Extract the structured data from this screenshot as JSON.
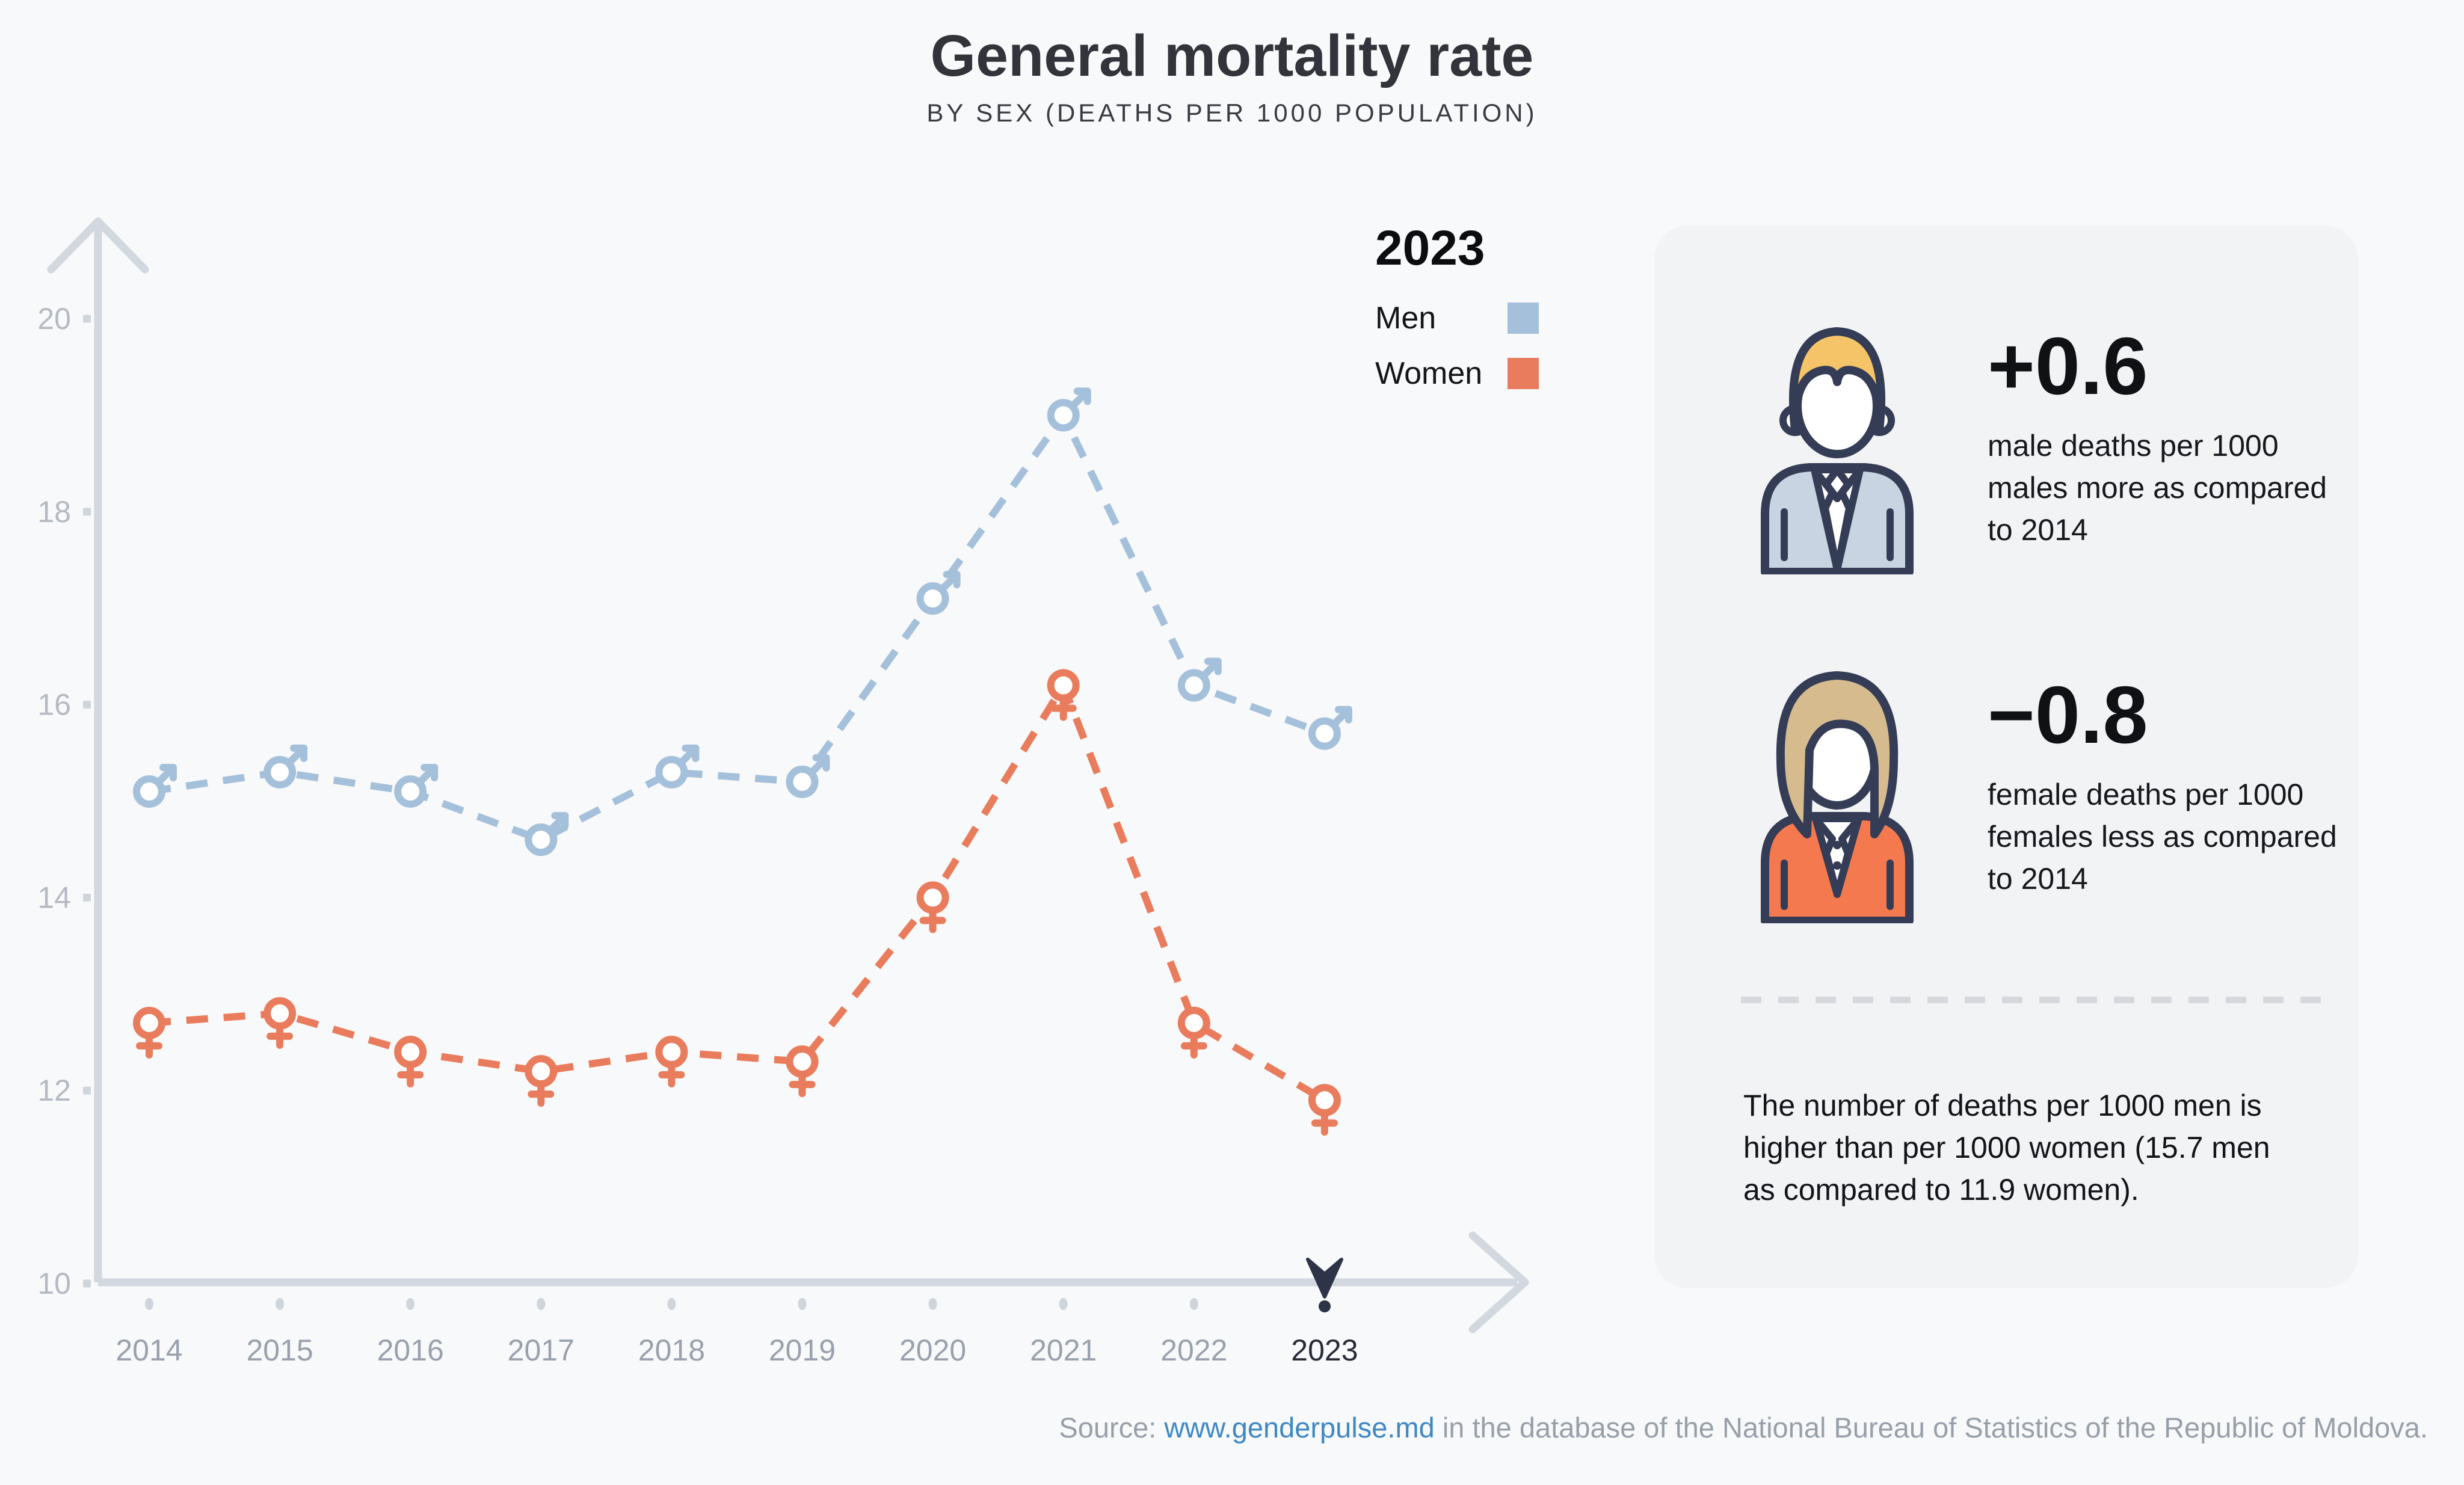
{
  "chart_data": {
    "type": "line",
    "title": "General mortality rate",
    "subtitle": "BY SEX (DEATHS PER 1000 POPULATION)",
    "categories": [
      "2014",
      "2015",
      "2016",
      "2017",
      "2018",
      "2019",
      "2020",
      "2021",
      "2022",
      "2023"
    ],
    "series": [
      {
        "name": "Men",
        "marker": "male",
        "color": "#a4c0da",
        "values": [
          15.1,
          15.3,
          15.1,
          14.6,
          15.3,
          15.2,
          17.1,
          19.0,
          16.2,
          15.7
        ]
      },
      {
        "name": "Women",
        "marker": "female",
        "color": "#e97c5c",
        "values": [
          12.7,
          12.8,
          12.4,
          12.2,
          12.4,
          12.3,
          14.0,
          16.2,
          12.7,
          11.9
        ]
      }
    ],
    "ylim": [
      10,
      20
    ],
    "yticks": [
      10,
      12,
      14,
      16,
      18,
      20
    ],
    "selected_year": "2023",
    "line_style": "dashed",
    "grid": false,
    "legend_position": "top-right",
    "colors": {
      "axis": "#d2d8df",
      "tick": "#cfd5dc",
      "y_label": "#b4bac3",
      "x_label": "#98a1ad",
      "selected": "#262b37",
      "pin": "#2e3448"
    }
  },
  "panel": {
    "male_stat": {
      "value": "+0.6",
      "description": "male deaths per 1000 males more as compared to 2014",
      "icon": "man-avatar-icon"
    },
    "female_stat": {
      "value": "−0.8",
      "description": "female deaths per 1000 females less as compared to 2014",
      "icon": "woman-avatar-icon"
    },
    "note": "The number of deaths per 1000 men is higher than per 1000 women (15.7 men as compared to 11.9 women)."
  },
  "source": {
    "prefix": "Source: ",
    "link": "www.genderpulse.md",
    "suffix": " in the database of the National Bureau of Statistics of the Republic of Moldova.",
    "link_color": "#3f88c5",
    "text_color": "#97a0aa"
  },
  "avatar_colors": {
    "outline": "#353c55",
    "male_hair": "#f6c468",
    "male_suit": "#c8d4e2",
    "female_hair": "#d5bb8e",
    "female_jacket": "#f4794e"
  }
}
